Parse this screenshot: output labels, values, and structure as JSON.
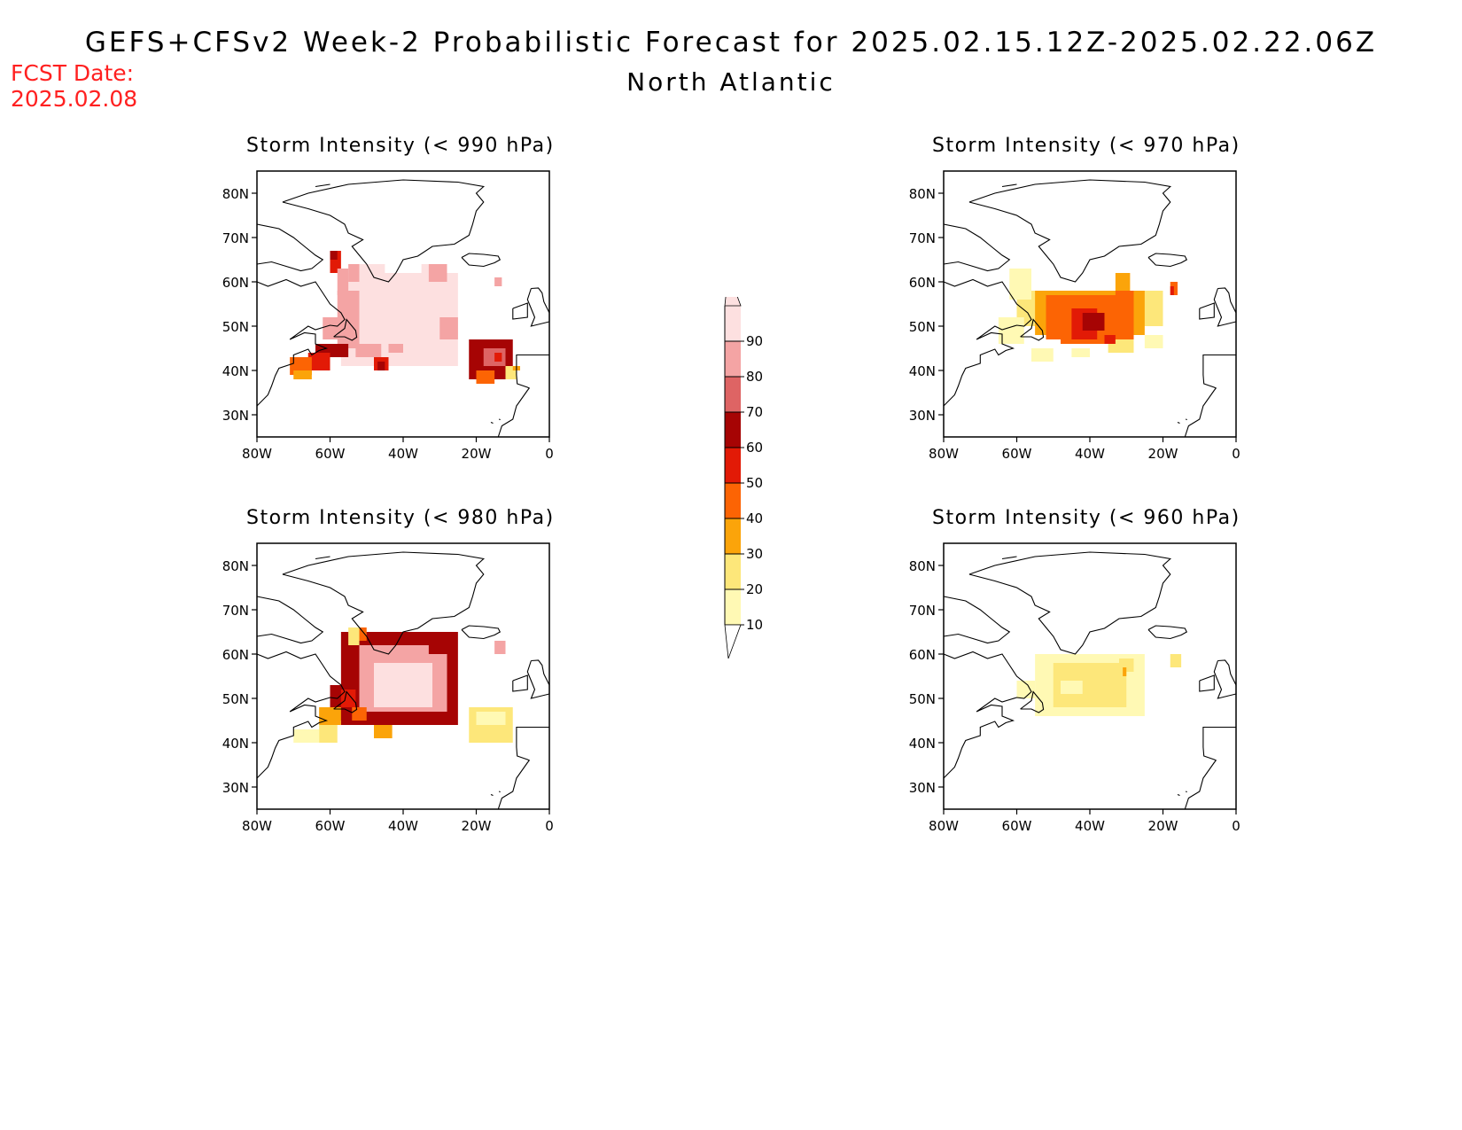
{
  "header": {
    "title": "GEFS+CFSv2 Week-2 Probabilistic Forecast for 2025.02.15.12Z-2025.02.22.06Z",
    "subtitle": "North Atlantic",
    "fcst_label": "FCST Date:",
    "fcst_date": "2025.02.08"
  },
  "colors": {
    "c10": "#fff9b4",
    "c20": "#fde77a",
    "c30": "#fba40a",
    "c40": "#fc6404",
    "c50": "#e21a06",
    "c60": "#a60404",
    "c70": "#de6464",
    "c80": "#f4a4a4",
    "c90": "#fde0e0"
  },
  "colorbar": {
    "levels": [
      "10",
      "20",
      "30",
      "40",
      "50",
      "60",
      "70",
      "80",
      "90"
    ]
  },
  "axes": {
    "lat_labels": [
      "80N",
      "70N",
      "60N",
      "50N",
      "40N",
      "30N"
    ],
    "lon_labels": [
      "80W",
      "60W",
      "40W",
      "20W",
      "0"
    ]
  },
  "panels": [
    {
      "id": "p990",
      "title": "Storm Intensity (< 990 hPa)"
    },
    {
      "id": "p970",
      "title": "Storm Intensity (< 970 hPa)"
    },
    {
      "id": "p980",
      "title": "Storm Intensity (< 980 hPa)"
    },
    {
      "id": "p960",
      "title": "Storm Intensity (< 960 hPa)"
    }
  ]
}
